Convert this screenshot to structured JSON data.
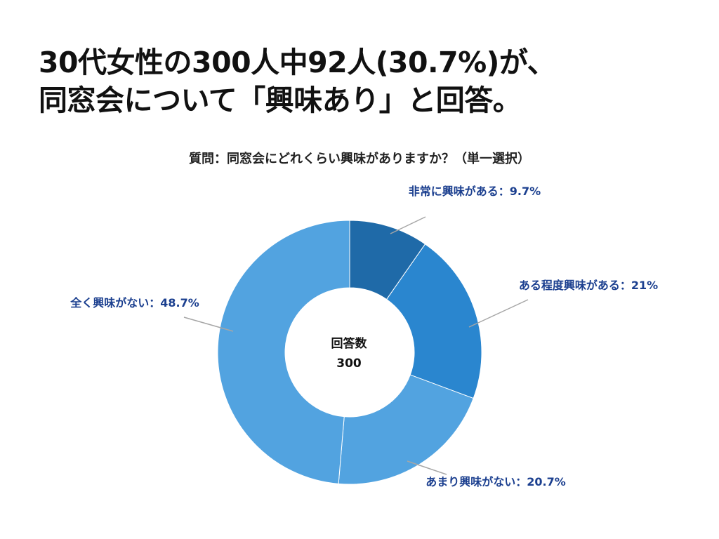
{
  "headline": {
    "line1": "30代女性の300人中92人(30.7%)が、",
    "line2": "同窓会について「興味あり」と回答。"
  },
  "chart_data": {
    "type": "pie",
    "title": "質問：同窓会にどれくらい興味がありますか？（単一選択）",
    "center_label": "回答数",
    "center_value": "300",
    "slices": [
      {
        "label": "非常に興味がある",
        "value": 9.7,
        "display": "非常に興味がある：9.7%",
        "color": "#1f6aa8"
      },
      {
        "label": "ある程度興味がある",
        "value": 21,
        "display": "ある程度興味がある：21%",
        "color": "#2a86cf"
      },
      {
        "label": "あまり興味がない",
        "value": 20.7,
        "display": "あまり興味がない：20.7%",
        "color": "#52a3e0"
      },
      {
        "label": "全く興味がない",
        "value": 48.7,
        "display": "全く興味がない：48.7%",
        "color": "#52a3e0"
      }
    ],
    "label_color": "#1b3f8f",
    "leader_color": "#a6a6a6"
  }
}
